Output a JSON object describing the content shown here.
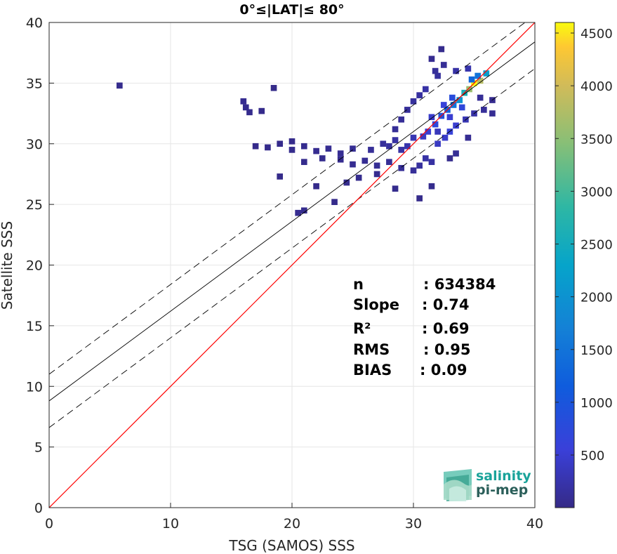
{
  "chart_data": {
    "type": "heatmap",
    "title": "0°≤|LAT|≤ 80°",
    "xlabel": "TSG (SAMOS) SSS",
    "ylabel": "Satellite SSS",
    "xlim": [
      0,
      40
    ],
    "ylim": [
      0,
      40
    ],
    "xticks": [
      "0",
      "10",
      "20",
      "30",
      "40"
    ],
    "yticks": [
      "0",
      "5",
      "10",
      "15",
      "20",
      "25",
      "30",
      "35",
      "40"
    ],
    "grid": true,
    "lines": {
      "identity": {
        "slope": 1,
        "intercept": 0,
        "color": "#ff0000"
      },
      "fit": {
        "slope": 0.74,
        "intercept": 8.8,
        "color": "#000000"
      },
      "fit_upper": {
        "slope": 0.74,
        "intercept": 11.0,
        "style": "dashed"
      },
      "fit_lower": {
        "slope": 0.74,
        "intercept": 6.6,
        "style": "dashed"
      }
    },
    "density": {
      "count_range": [
        1,
        4600
      ],
      "cells": [
        [
          36,
          35.8,
          2200
        ],
        [
          35.5,
          35.2,
          3800
        ],
        [
          35,
          35,
          4600
        ],
        [
          34.6,
          34.5,
          3600
        ],
        [
          34.2,
          34.2,
          2600
        ],
        [
          33.8,
          33.6,
          2000
        ],
        [
          33.3,
          33.2,
          1500
        ],
        [
          32.8,
          32.8,
          1200
        ],
        [
          32.3,
          32.3,
          900
        ],
        [
          31.8,
          31.6,
          700
        ],
        [
          31.2,
          31,
          500
        ],
        [
          30.8,
          30.6,
          400
        ],
        [
          34.8,
          35.3,
          1300
        ],
        [
          35.3,
          35.6,
          1500
        ],
        [
          33.2,
          33.8,
          800
        ],
        [
          32.5,
          33.2,
          600
        ],
        [
          31.5,
          32.2,
          450
        ],
        [
          34,
          33,
          700
        ],
        [
          33,
          32.2,
          500
        ],
        [
          32,
          31,
          350
        ],
        [
          30,
          30.5,
          300
        ],
        [
          29.5,
          29.8,
          250
        ],
        [
          29,
          29.5,
          200
        ],
        [
          28.5,
          30.3,
          180
        ],
        [
          28,
          29.8,
          150
        ],
        [
          27.5,
          30,
          130
        ],
        [
          26.5,
          29.5,
          110
        ],
        [
          25,
          29.6,
          90
        ],
        [
          24,
          29.2,
          80
        ],
        [
          23,
          29.6,
          70
        ],
        [
          22,
          29.4,
          60
        ],
        [
          21,
          29.8,
          50
        ],
        [
          20,
          29.5,
          40
        ],
        [
          19,
          30,
          30
        ],
        [
          18,
          29.7,
          25
        ],
        [
          17,
          29.8,
          20
        ],
        [
          31,
          28.8,
          200
        ],
        [
          31.5,
          28.5,
          180
        ],
        [
          30.5,
          28.2,
          150
        ],
        [
          30,
          27.8,
          120
        ],
        [
          29,
          28,
          100
        ],
        [
          28,
          28.5,
          100
        ],
        [
          27,
          28.2,
          90
        ],
        [
          26,
          28.6,
          80
        ],
        [
          25,
          28.3,
          70
        ],
        [
          24,
          28.7,
          60
        ],
        [
          22.5,
          28.8,
          50
        ],
        [
          21,
          28.5,
          40
        ],
        [
          27,
          27.5,
          60
        ],
        [
          25.5,
          27.2,
          50
        ],
        [
          24.5,
          26.8,
          40
        ],
        [
          22,
          26.5,
          30
        ],
        [
          32,
          30,
          400
        ],
        [
          32.6,
          30.5,
          450
        ],
        [
          33,
          31,
          600
        ],
        [
          33.5,
          31.5,
          500
        ],
        [
          34.3,
          32,
          300
        ],
        [
          35,
          32.5,
          200
        ],
        [
          35.8,
          32.8,
          120
        ],
        [
          36.5,
          32.5,
          80
        ],
        [
          32,
          35.6,
          150
        ],
        [
          32.5,
          36.5,
          100
        ],
        [
          31.5,
          37,
          60
        ],
        [
          32.3,
          37.8,
          40
        ],
        [
          31.8,
          36,
          120
        ],
        [
          33.5,
          36,
          200
        ],
        [
          34.5,
          36.2,
          250
        ],
        [
          31,
          34.5,
          200
        ],
        [
          30,
          33.5,
          150
        ],
        [
          30.5,
          34,
          160
        ],
        [
          29.5,
          32.8,
          120
        ],
        [
          29,
          32,
          110
        ],
        [
          28.5,
          31.2,
          100
        ],
        [
          16,
          33.5,
          60
        ],
        [
          16.2,
          33,
          50
        ],
        [
          16.5,
          32.6,
          40
        ],
        [
          5.8,
          34.8,
          40
        ],
        [
          17.5,
          32.7,
          25
        ],
        [
          18.5,
          34.6,
          15
        ],
        [
          20,
          30.2,
          30
        ],
        [
          19,
          27.3,
          20
        ],
        [
          20.5,
          24.3,
          60
        ],
        [
          21,
          24.5,
          40
        ],
        [
          23.5,
          25.2,
          30
        ],
        [
          28.5,
          26.3,
          40
        ],
        [
          30.5,
          25.5,
          30
        ],
        [
          31.5,
          26.5,
          40
        ],
        [
          33.5,
          29.2,
          90
        ],
        [
          35.5,
          33.8,
          100
        ],
        [
          36.5,
          33.6,
          60
        ],
        [
          33,
          28.8,
          40
        ],
        [
          34.5,
          30.5,
          80
        ]
      ]
    },
    "colorbar": {
      "range": [
        1,
        4600
      ],
      "ticks": [
        "500",
        "1000",
        "1500",
        "2000",
        "2500",
        "3000",
        "3500",
        "4000",
        "4500"
      ],
      "colormap": "parula"
    },
    "stats": [
      {
        "label": "n",
        "value": ": 634384"
      },
      {
        "label": "Slope",
        "value": ": 0.74"
      },
      {
        "label": "R²",
        "value": ": 0.69"
      },
      {
        "label": "RMS",
        "value": ": 0.95"
      },
      {
        "label": "BIAS",
        "value": ": 0.09"
      }
    ]
  },
  "logo": {
    "line1": "salinity",
    "line2": "pi-mep",
    "color1": "#1aa39a",
    "color2": "#2b5f5a"
  }
}
